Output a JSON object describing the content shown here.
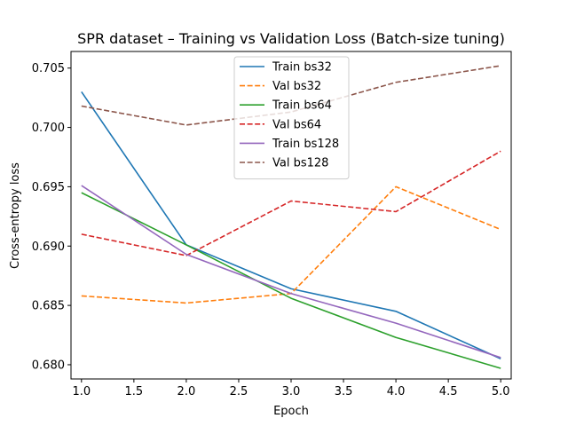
{
  "chart_data": {
    "type": "line",
    "title": "SPR dataset – Training vs Validation Loss (Batch-size tuning)",
    "xlabel": "Epoch",
    "ylabel": "Cross-entropy loss",
    "xlim": [
      0.9,
      5.1
    ],
    "ylim": [
      0.6788,
      0.7064
    ],
    "xticks": [
      1.0,
      1.5,
      2.0,
      2.5,
      3.0,
      3.5,
      4.0,
      4.5,
      5.0
    ],
    "xtick_labels": [
      "1.0",
      "1.5",
      "2.0",
      "2.5",
      "3.0",
      "3.5",
      "4.0",
      "4.5",
      "5.0"
    ],
    "yticks": [
      0.68,
      0.685,
      0.69,
      0.695,
      0.7,
      0.705
    ],
    "ytick_labels": [
      "0.680",
      "0.685",
      "0.690",
      "0.695",
      "0.700",
      "0.705"
    ],
    "grid": false,
    "legend_position": "top-center",
    "x": [
      1,
      2,
      3,
      4,
      5
    ],
    "series": [
      {
        "name": "Train bs32",
        "color": "#1f77b4",
        "dash": "solid",
        "values": [
          0.703,
          0.6901,
          0.6864,
          0.6845,
          0.6805
        ]
      },
      {
        "name": "Val bs32",
        "color": "#ff7f0e",
        "dash": "dashed",
        "values": [
          0.6858,
          0.6852,
          0.686,
          0.695,
          0.6914
        ]
      },
      {
        "name": "Train bs64",
        "color": "#2ca02c",
        "dash": "solid",
        "values": [
          0.6945,
          0.6901,
          0.6856,
          0.6823,
          0.6797
        ]
      },
      {
        "name": "Val bs64",
        "color": "#d62728",
        "dash": "dashed",
        "values": [
          0.691,
          0.6892,
          0.6938,
          0.6929,
          0.698
        ]
      },
      {
        "name": "Train bs128",
        "color": "#9467bd",
        "dash": "solid",
        "values": [
          0.6951,
          0.6893,
          0.686,
          0.6835,
          0.6806
        ]
      },
      {
        "name": "Val bs128",
        "color": "#8c564b",
        "dash": "dashed",
        "values": [
          0.7018,
          0.7002,
          0.7013,
          0.7038,
          0.7052
        ]
      }
    ]
  }
}
